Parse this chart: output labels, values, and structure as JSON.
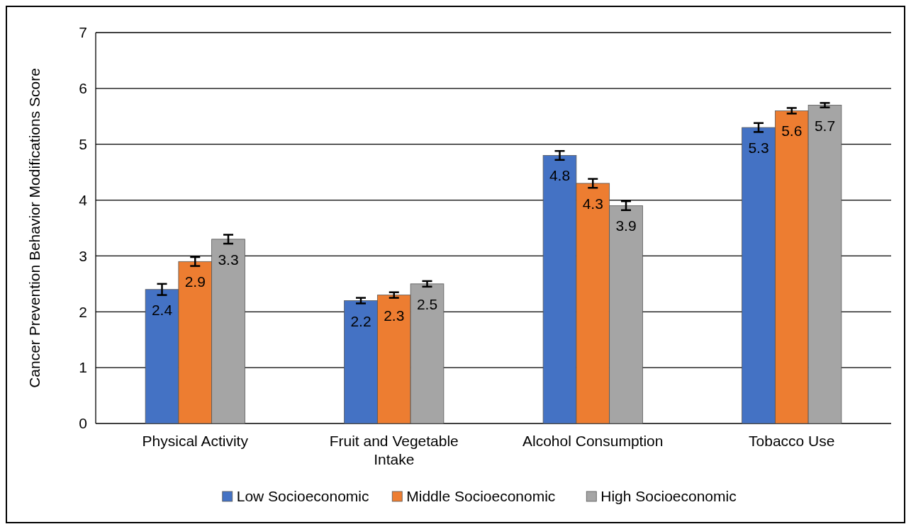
{
  "chart_data": {
    "type": "bar",
    "ylabel": "Cancer Prevention Behavior Modifications Score",
    "categories": [
      "Physical Activity",
      "Fruit and Vegetable Intake",
      "Alcohol Consumption",
      "Tobacco Use"
    ],
    "series": [
      {
        "name": "Low Socioeconomic",
        "color": "#4472c4",
        "values": [
          2.4,
          2.2,
          4.8,
          5.3
        ],
        "errors": [
          0.1,
          0.05,
          0.08,
          0.08
        ]
      },
      {
        "name": "Middle Socioeconomic",
        "color": "#ed7d31",
        "values": [
          2.9,
          2.3,
          4.3,
          5.6
        ],
        "errors": [
          0.08,
          0.05,
          0.08,
          0.05
        ]
      },
      {
        "name": "High Socioeconomic",
        "color": "#a5a5a5",
        "values": [
          3.3,
          2.5,
          3.9,
          5.7
        ],
        "errors": [
          0.08,
          0.05,
          0.08,
          0.04
        ]
      }
    ],
    "ylim": [
      0,
      7
    ],
    "yticks": [
      0,
      1,
      2,
      3,
      4,
      5,
      6,
      7
    ],
    "grid": "y",
    "legend": "bottom",
    "data_labels": true
  }
}
